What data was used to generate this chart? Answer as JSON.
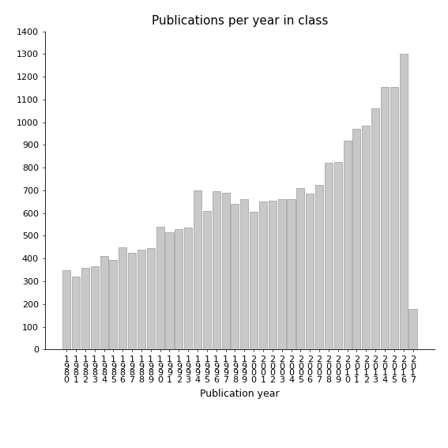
{
  "title": "Publications per year in class",
  "xlabel": "Publication year",
  "ylim": [
    0,
    1400
  ],
  "yticks": [
    0,
    100,
    200,
    300,
    400,
    500,
    600,
    700,
    800,
    900,
    1000,
    1100,
    1200,
    1300,
    1400
  ],
  "bar_color": "#c8c8c8",
  "bar_edge_color": "#888888",
  "categories": [
    "1\n9\n8\n0",
    "1\n9\n8\n1",
    "1\n9\n8\n2",
    "1\n9\n8\n3",
    "1\n9\n8\n4",
    "1\n9\n8\n5",
    "1\n9\n8\n6",
    "1\n9\n8\n7",
    "1\n9\n8\n8",
    "1\n9\n8\n9",
    "1\n9\n9\n0",
    "1\n9\n9\n1",
    "1\n9\n9\n2",
    "1\n9\n9\n3",
    "1\n9\n9\n4",
    "1\n9\n9\n5",
    "1\n9\n9\n6",
    "1\n9\n9\n7",
    "1\n9\n9\n8",
    "1\n9\n9\n9",
    "2\n0\n0\n0",
    "2\n0\n0\n1",
    "2\n0\n0\n2",
    "2\n0\n0\n3",
    "2\n0\n0\n4",
    "2\n0\n0\n5",
    "2\n0\n0\n6",
    "2\n0\n0\n7",
    "2\n0\n0\n8",
    "2\n0\n0\n9",
    "2\n0\n1\n0",
    "2\n0\n1\n1",
    "2\n0\n1\n2",
    "2\n0\n1\n3",
    "2\n0\n1\n4",
    "2\n0\n1\n5",
    "2\n0\n1\n6",
    "2\n0\n1\n7"
  ],
  "values": [
    350,
    320,
    360,
    365,
    410,
    395,
    450,
    425,
    440,
    445,
    540,
    515,
    530,
    535,
    700,
    610,
    695,
    690,
    640,
    660,
    605,
    650,
    655,
    660,
    660,
    710,
    685,
    725,
    820,
    825,
    920,
    970,
    985,
    1060,
    1155,
    1155,
    1300,
    180
  ],
  "background_color": "#ffffff",
  "title_fontsize": 11,
  "axis_fontsize": 9,
  "tick_fontsize": 8
}
